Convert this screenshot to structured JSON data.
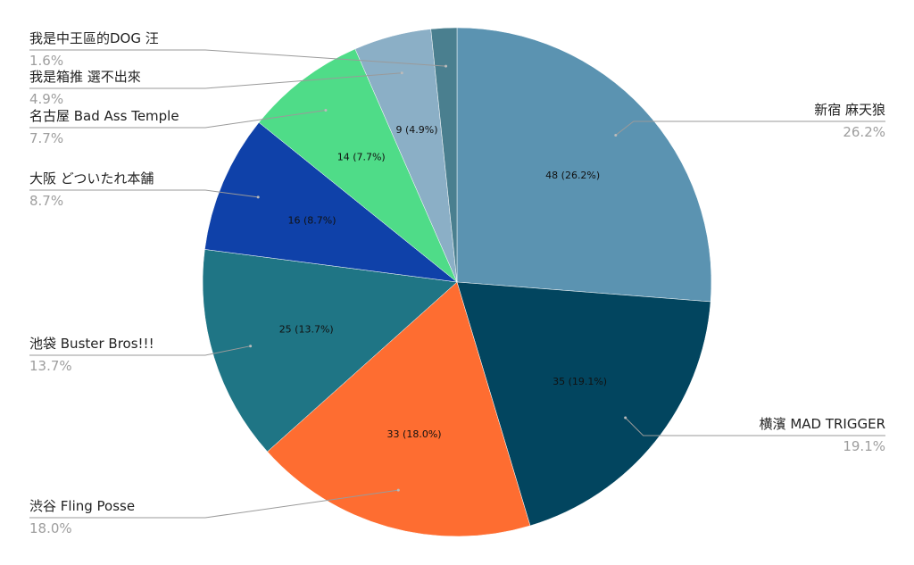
{
  "chart_data": {
    "type": "pie",
    "start_angle_deg": 0,
    "direction": "clockwise",
    "slices": [
      {
        "label": "新宿 麻天狼",
        "value": 48,
        "slice_text": "48 (26.2%)",
        "percent_text": "26.2%",
        "color": "#5b93b1",
        "side": "right"
      },
      {
        "label": "横濱 MAD TRIGGER",
        "value": 35,
        "slice_text": "35 (19.1%)",
        "percent_text": "19.1%",
        "color": "#02455f",
        "side": "right"
      },
      {
        "label": "渋谷 Fling Posse",
        "value": 33,
        "slice_text": "33 (18.0%)",
        "percent_text": "18.0%",
        "color": "#fe6d31",
        "side": "left"
      },
      {
        "label": "池袋 Buster Bros!!!",
        "value": 25,
        "slice_text": "25 (13.7%)",
        "percent_text": "13.7%",
        "color": "#1f7585",
        "side": "left"
      },
      {
        "label": "大阪 どついたれ本舗",
        "value": 16,
        "slice_text": "16 (8.7%)",
        "percent_text": "8.7%",
        "color": "#0f41a9",
        "side": "left"
      },
      {
        "label": "名古屋 Bad Ass Temple",
        "value": 14,
        "slice_text": "14 (7.7%)",
        "percent_text": "7.7%",
        "color": "#4fdc88",
        "side": "left"
      },
      {
        "label": "我是箱推 選不出來",
        "value": 9,
        "slice_text": "9 (4.9%)",
        "percent_text": "4.9%",
        "color": "#8bafc6",
        "side": "left"
      },
      {
        "label": "我是中王區的DOG 汪",
        "value": 3,
        "slice_text": "",
        "percent_text": "1.6%",
        "color": "#4a7f8f",
        "side": "left"
      }
    ]
  }
}
